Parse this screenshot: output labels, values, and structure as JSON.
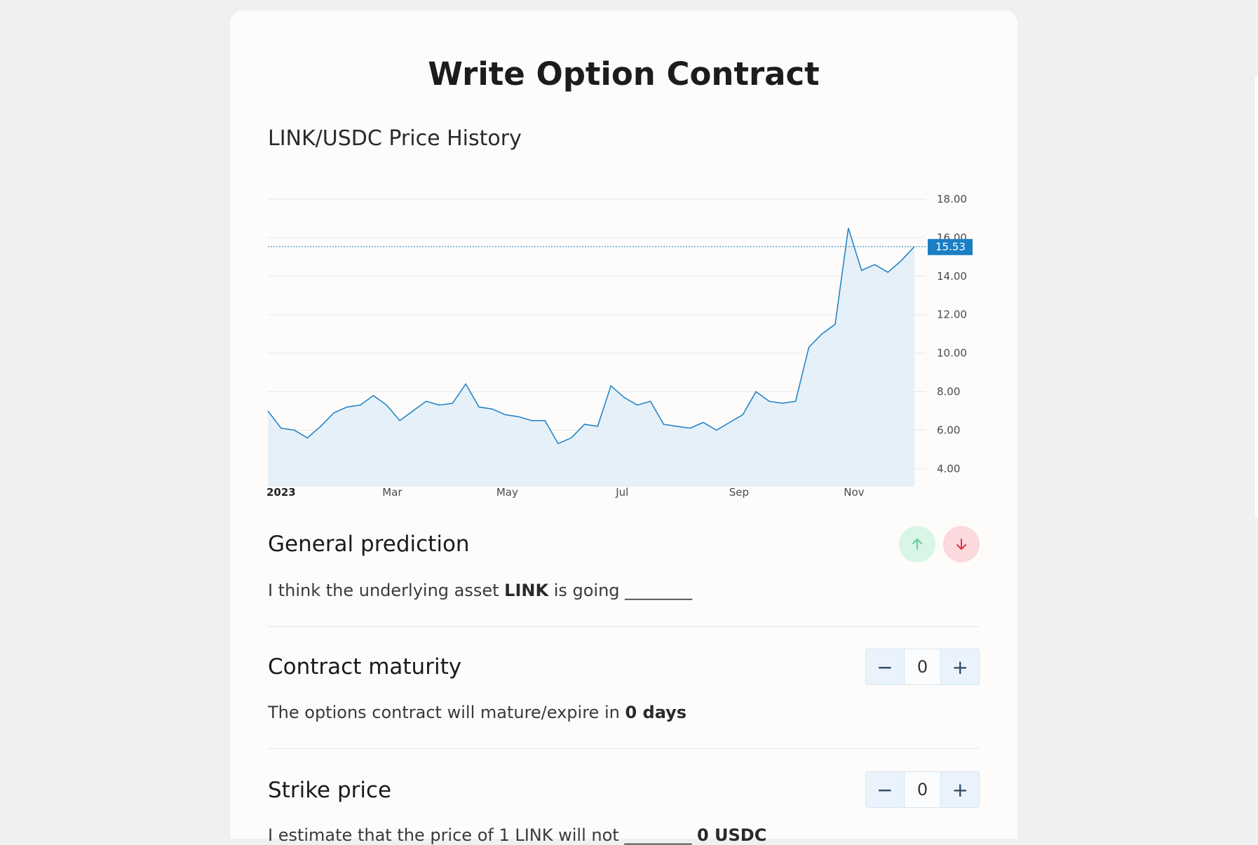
{
  "page": {
    "title": "Write Option Contract"
  },
  "chart_section": {
    "title": "LINK/USDC Price History"
  },
  "chart_data": {
    "type": "area",
    "title": "LINK/USDC Price History",
    "series": [
      {
        "x": [
          "2023-01-01",
          "2023-01-08",
          "2023-01-15",
          "2023-01-22",
          "2023-01-29",
          "2023-02-05",
          "2023-02-12",
          "2023-02-19",
          "2023-02-26",
          "2023-03-05",
          "2023-03-12",
          "2023-03-19",
          "2023-03-26",
          "2023-04-02",
          "2023-04-09",
          "2023-04-16",
          "2023-04-23",
          "2023-04-30",
          "2023-05-07",
          "2023-05-14",
          "2023-05-21",
          "2023-05-28",
          "2023-06-04",
          "2023-06-11",
          "2023-06-18",
          "2023-06-25",
          "2023-07-02",
          "2023-07-09",
          "2023-07-16",
          "2023-07-23",
          "2023-07-30",
          "2023-08-06",
          "2023-08-13",
          "2023-08-20",
          "2023-08-27",
          "2023-09-03",
          "2023-09-10",
          "2023-09-17",
          "2023-09-24",
          "2023-10-01",
          "2023-10-08",
          "2023-10-15",
          "2023-10-22",
          "2023-10-29",
          "2023-11-05",
          "2023-11-12",
          "2023-11-19",
          "2023-11-26",
          "2023-12-03",
          "2023-12-10"
        ],
        "values": [
          7.0,
          6.1,
          6.0,
          5.6,
          6.2,
          6.9,
          7.2,
          7.3,
          7.8,
          7.3,
          6.5,
          7.0,
          7.5,
          7.3,
          7.4,
          8.4,
          7.2,
          7.1,
          6.8,
          6.7,
          6.5,
          6.5,
          5.3,
          5.6,
          6.3,
          6.2,
          8.3,
          7.7,
          7.3,
          7.5,
          6.3,
          6.2,
          6.1,
          6.4,
          6.0,
          6.4,
          6.8,
          8.0,
          7.5,
          7.4,
          7.5,
          10.3,
          11.0,
          11.5,
          16.5,
          14.3,
          14.6,
          14.2,
          14.8,
          15.53
        ]
      }
    ],
    "x_tick_labels": [
      "2023",
      "Mar",
      "May",
      "Jul",
      "Sep",
      "Nov"
    ],
    "y_tick_labels": [
      "18.00",
      "16.00",
      "14.00",
      "12.00",
      "10.00",
      "8.00",
      "6.00",
      "4.00"
    ],
    "ylim": [
      3.5,
      18.0
    ],
    "current_price_label": "15.53",
    "current_price": 15.53,
    "grid": "horizontal",
    "colors": {
      "line": "#1b7fc4",
      "fill": "#e5f0f9",
      "price_tag": "#1b7fc4"
    }
  },
  "prediction": {
    "title": "General prediction",
    "text_before": "I think the underlying asset ",
    "asset": "LINK",
    "text_after": " is going ________",
    "up_icon": "arrow-up-icon",
    "down_icon": "arrow-down-icon",
    "up_color": "#5ccf9a",
    "down_color": "#e0323f"
  },
  "maturity": {
    "title": "Contract maturity",
    "stepper_value": "0",
    "minus": "−",
    "plus": "+",
    "text_before": "The options contract will mature/expire in ",
    "value_text": "0 days"
  },
  "strike": {
    "title": "Strike price",
    "stepper_value": "0",
    "minus": "−",
    "plus": "+",
    "text_before": "I estimate that the price of 1 LINK will not ________ ",
    "value_text": "0 USDC"
  }
}
